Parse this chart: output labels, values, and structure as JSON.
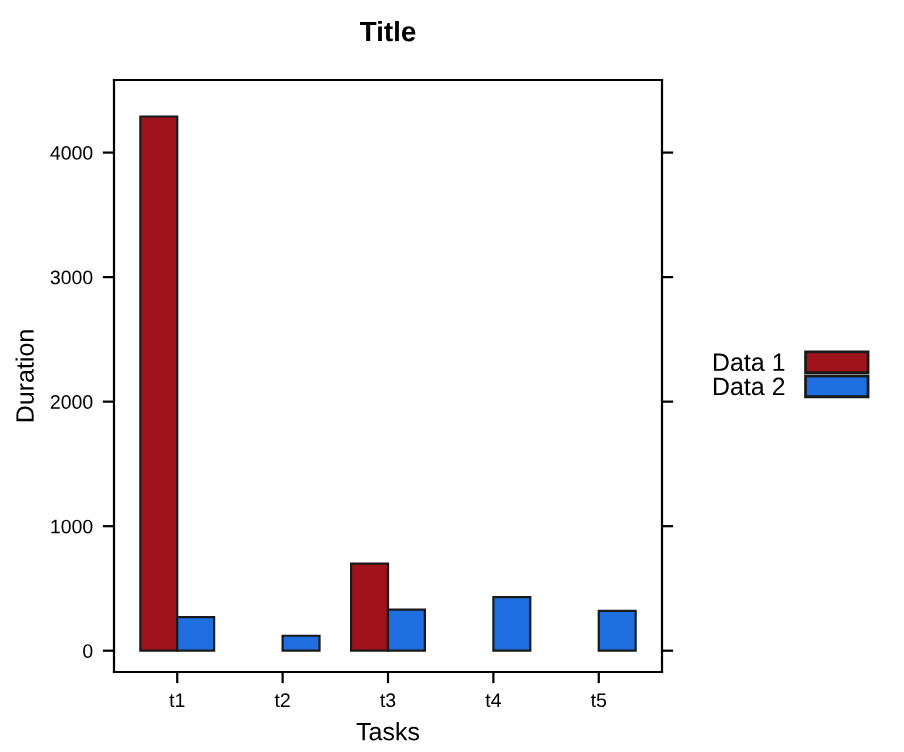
{
  "chart_data": {
    "type": "bar",
    "title": "Title",
    "xlabel": "Tasks",
    "ylabel": "Duration",
    "categories": [
      "t1",
      "t2",
      "t3",
      "t4",
      "t5"
    ],
    "series": [
      {
        "name": "Data 1",
        "color": "#a0131d",
        "values": [
          4290,
          null,
          700,
          null,
          null
        ]
      },
      {
        "name": "Data 2",
        "color": "#1f6fe0",
        "values": [
          270,
          120,
          330,
          430,
          320
        ]
      }
    ],
    "ylim": [
      -171,
      4583
    ],
    "yticks": [
      0,
      1000,
      2000,
      3000,
      4000
    ],
    "grid": false,
    "legend": "right"
  }
}
